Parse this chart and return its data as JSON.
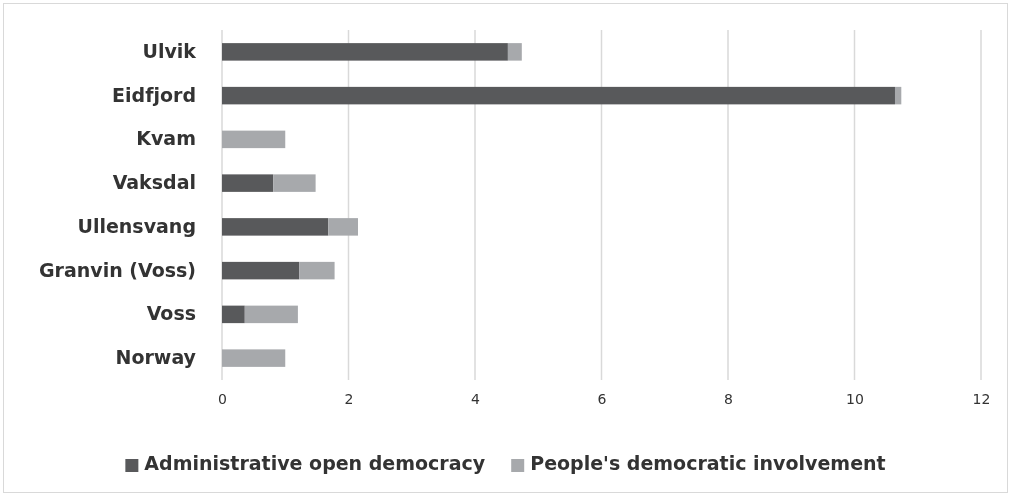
{
  "chart_data": {
    "type": "bar",
    "orientation": "horizontal",
    "stacked": true,
    "categories": [
      "Ulvik",
      "Eidfjord",
      "Kvam",
      "Vaksdal",
      "Ullensvang",
      "Granvin (Voss)",
      "Voss",
      "Norway"
    ],
    "series": [
      {
        "name": "Administrative open democracy",
        "color": "#58595b",
        "values": [
          4.52,
          10.64,
          0,
          0.81,
          1.68,
          1.22,
          0.36,
          0
        ]
      },
      {
        "name": "People's democratic involvement",
        "color": "#a7a9ac",
        "values": [
          0.22,
          0.1,
          1.0,
          0.67,
          0.47,
          0.56,
          0.84,
          1.0
        ]
      }
    ],
    "xlim": [
      0,
      12
    ],
    "xticks": [
      0,
      2,
      4,
      6,
      8,
      10,
      12
    ],
    "grid": "x",
    "legend": "bottom"
  }
}
